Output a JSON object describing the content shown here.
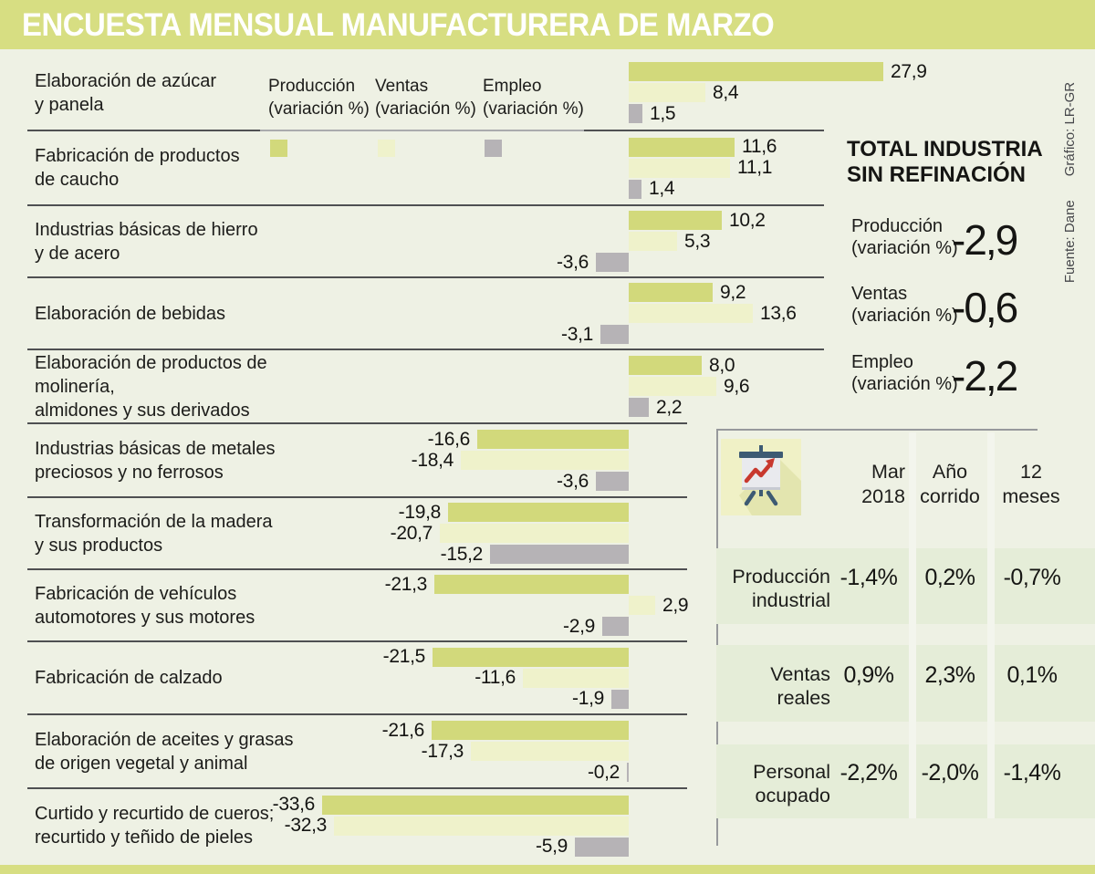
{
  "title": "ENCUESTA MENSUAL MANUFACTURERA DE MARZO",
  "source": {
    "fuente": "Fuente: Dane",
    "grafico": "Gráfico: LR-GR"
  },
  "colors": {
    "background": "#eef1e4",
    "band": "#d7de82",
    "bar_produccion": "#d2d97b",
    "bar_ventas": "#eff2cb",
    "bar_empleo": "#b6b3b6",
    "table_row_tint": "#e5edd8",
    "icon_square": "#f0f1c6",
    "icon_navy": "#3d5a73",
    "icon_red": "#c8382e"
  },
  "legend": [
    {
      "label": "Producción",
      "sub": "(variación %)",
      "color": "#d2d97b"
    },
    {
      "label": "Ventas",
      "sub": "(variación %)",
      "color": "#eff2cb"
    },
    {
      "label": "Empleo",
      "sub": "(variación %)",
      "color": "#b6b3b6"
    }
  ],
  "chart_data": {
    "type": "bar",
    "orientation": "horizontal",
    "title": "ENCUESTA MENSUAL MANUFACTURERA DE MARZO",
    "xlabel": "variación %",
    "xlim": [
      -34,
      28
    ],
    "decimal_separator": ",",
    "categories": [
      "Elaboración de azúcar y panela",
      "Fabricación de productos de caucho",
      "Industrias básicas de hierro y de acero",
      "Elaboración de bebidas",
      "Elaboración de productos de molinería, almidones y sus derivados",
      "Industrias básicas de metales preciosos y no ferrosos",
      "Transformación de la madera y sus productos",
      "Fabricación de vehículos automotores y sus motores",
      "Fabricación de calzado",
      "Elaboración de aceites y grasas de origen vegetal y animal",
      "Curtido y recurtido de cueros; recurtido y teñido de pieles"
    ],
    "category_lines": [
      [
        "Elaboración de azúcar",
        "y panela"
      ],
      [
        "Fabricación de productos",
        "de caucho"
      ],
      [
        "Industrias básicas de hierro",
        "y de acero"
      ],
      [
        "Elaboración de bebidas"
      ],
      [
        "Elaboración de productos de molinería,",
        "almidones y sus derivados"
      ],
      [
        "Industrias básicas de metales",
        "preciosos y no ferrosos"
      ],
      [
        "Transformación de la madera",
        "y sus productos"
      ],
      [
        "Fabricación de vehículos",
        "automotores y sus motores"
      ],
      [
        "Fabricación de calzado"
      ],
      [
        "Elaboración de aceites y grasas",
        "de origen vegetal y animal"
      ],
      [
        "Curtido y recurtido de cueros;",
        "recurtido y teñido de pieles"
      ]
    ],
    "series": [
      {
        "name": "Producción (variación %)",
        "values": [
          27.9,
          11.6,
          10.2,
          9.2,
          8.0,
          -16.6,
          -19.8,
          -21.3,
          -21.5,
          -21.6,
          -33.6
        ],
        "labels": [
          "27,9",
          "11,6",
          "10,2",
          "9,2",
          "8,0",
          "-16,6",
          "-19,8",
          "-21,3",
          "-21,5",
          "-21,6",
          "-33,6"
        ]
      },
      {
        "name": "Ventas (variación %)",
        "values": [
          8.4,
          11.1,
          5.3,
          13.6,
          9.6,
          -18.4,
          -20.7,
          2.9,
          -11.6,
          -17.3,
          -32.3
        ],
        "labels": [
          "8,4",
          "11,1",
          "5,3",
          "13,6",
          "9,6",
          "-18,4",
          "-20,7",
          "2,9",
          "-11,6",
          "-17,3",
          "-32,3"
        ]
      },
      {
        "name": "Empleo (variación %)",
        "values": [
          1.5,
          1.4,
          -3.6,
          -3.1,
          2.2,
          -3.6,
          -15.2,
          -2.9,
          -1.9,
          -0.2,
          -5.9
        ],
        "labels": [
          "1,5",
          "1,4",
          "-3,6",
          "-3,1",
          "2,2",
          "-3,6",
          "-15,2",
          "-2,9",
          "-1,9",
          "-0,2",
          "-5,9"
        ]
      }
    ]
  },
  "total_panel": {
    "title_line1": "TOTAL INDUSTRIA",
    "title_line2": "SIN REFINACIÓN",
    "items": [
      {
        "label": "Producción",
        "sub": "(variación %)",
        "value": "-2,9"
      },
      {
        "label": "Ventas",
        "sub": "(variación %)",
        "value": "-0,6"
      },
      {
        "label": "Empleo",
        "sub": "(variación %)",
        "value": "-2,2"
      }
    ]
  },
  "summary_table": {
    "icon": "flipchart-trend-icon",
    "columns": [
      {
        "line1": "Mar",
        "line2": "2018"
      },
      {
        "line1": "Año",
        "line2": "corrido"
      },
      {
        "line1": "12",
        "line2": "meses"
      }
    ],
    "rows": [
      {
        "label_line1": "Producción",
        "label_line2": "industrial",
        "values": [
          "-1,4%",
          "0,2%",
          "-0,7%"
        ]
      },
      {
        "label_line1": "Ventas",
        "label_line2": "reales",
        "values": [
          "0,9%",
          "2,3%",
          "0,1%"
        ]
      },
      {
        "label_line1": "Personal",
        "label_line2": "ocupado",
        "values": [
          "-2,2%",
          "-2,0%",
          "-1,4%"
        ]
      }
    ]
  }
}
